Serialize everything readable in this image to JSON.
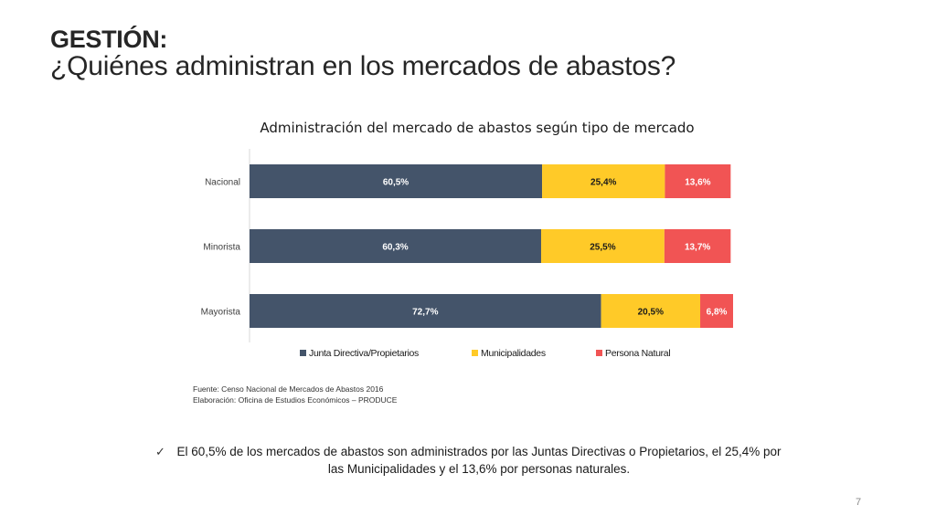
{
  "slide": {
    "heading": "GESTIÓN:",
    "subheading": "¿Quiénes administran en los mercados de abastos?",
    "page_number": "7"
  },
  "source": {
    "line1": "Fuente: Censo Nacional de Mercados de Abastos 2016",
    "line2": "Elaboración: Oficina de Estudios Económicos – PRODUCE"
  },
  "conclusion": {
    "check": "✓",
    "text": "El 60,5% de los mercados de abastos son administrados por las Juntas Directivas o Propietarios, el 25,4% por las Municipalidades y el 13,6% por personas naturales."
  },
  "chart_data": {
    "type": "bar",
    "orientation": "horizontal",
    "stacked": true,
    "title": "Administración del mercado de abastos según tipo de mercado",
    "categories": [
      "Nacional",
      "Minorista",
      "Mayorista"
    ],
    "series": [
      {
        "name": "Junta Directiva/Propietarios",
        "color": "#44546a",
        "label_color": "#ffffff",
        "values": [
          60.5,
          60.3,
          72.7
        ],
        "labels": [
          "60,5%",
          "60,3%",
          "72,7%"
        ]
      },
      {
        "name": "Municipalidades",
        "color": "#ffca28",
        "label_color": "#1a1a1a",
        "values": [
          25.4,
          25.5,
          20.5
        ],
        "labels": [
          "25,4%",
          "25,5%",
          "20,5%"
        ]
      },
      {
        "name": "Persona Natural",
        "color": "#f15454",
        "label_color": "#ffffff",
        "values": [
          13.6,
          13.7,
          6.8
        ],
        "labels": [
          "13,6%",
          "13,7%",
          "6,8%"
        ]
      }
    ],
    "xlim": [
      0,
      100
    ],
    "legend": "bottom",
    "grid": false
  }
}
